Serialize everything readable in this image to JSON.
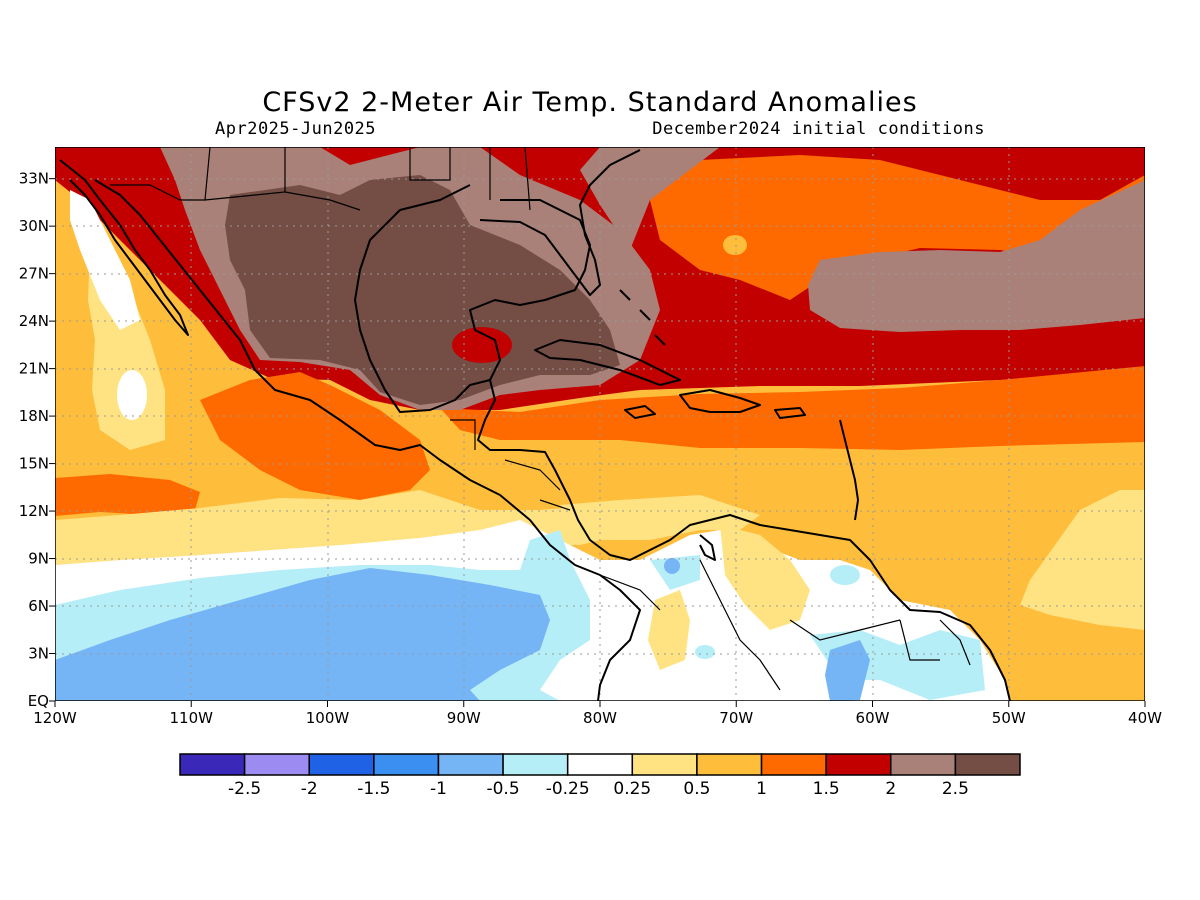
{
  "title": "CFSv2 2-Meter Air Temp. Standard Anomalies",
  "subtitle_left": "Apr2025-Jun2025",
  "subtitle_right": "December2024 initial conditions",
  "map": {
    "lon_range": [
      -120,
      -40
    ],
    "lat_range": [
      0,
      35
    ],
    "lat_ticks": [
      "33N",
      "30N",
      "27N",
      "24N",
      "21N",
      "18N",
      "15N",
      "12N",
      "9N",
      "6N",
      "3N",
      "EQ"
    ],
    "lon_ticks": [
      "120W",
      "110W",
      "100W",
      "90W",
      "80W",
      "70W",
      "60W",
      "50W",
      "40W"
    ],
    "gridlines": "dotted"
  },
  "colorbar": {
    "labels": [
      "-2.5",
      "-2",
      "-1.5",
      "-1",
      "-0.5",
      "-0.25",
      "0.25",
      "0.5",
      "1",
      "1.5",
      "2",
      "2.5"
    ],
    "colors": [
      "#3a28b8",
      "#9c8cf2",
      "#1f62e6",
      "#3a8ff0",
      "#75b4f5",
      "#b6eef8",
      "#ffffff",
      "#ffe383",
      "#ffbd3c",
      "#ff6a00",
      "#c20000",
      "#aa8178",
      "#744d44"
    ]
  }
}
